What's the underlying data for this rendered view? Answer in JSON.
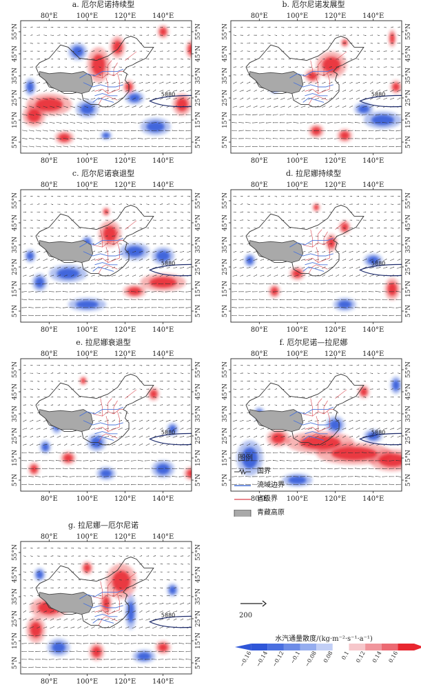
{
  "panels": [
    {
      "title": "a. 厄尔尼诺持续型",
      "contour_label": "5880"
    },
    {
      "title": "b. 厄尔尼诺发展型",
      "contour_label": "5880"
    },
    {
      "title": "c. 厄尔尼诺衰退型",
      "contour_label": "5880"
    },
    {
      "title": "d. 拉尼娜持续型",
      "contour_label": "5880"
    },
    {
      "title": "e. 拉尼娜衰退型",
      "contour_label": "5880"
    },
    {
      "title": "f. 厄尔尼诺—拉尼娜",
      "contour_label": "5880"
    },
    {
      "title": "g. 拉尼娜—厄尔尼诺",
      "contour_label": "5880"
    }
  ],
  "axes": {
    "lon_labels": [
      "80°E",
      "100°E",
      "120°E",
      "140°E"
    ],
    "lat_labels": [
      "55°N",
      "45°N",
      "35°N",
      "25°N",
      "15°N",
      "5°N"
    ]
  },
  "legend": {
    "title": "图例",
    "items": [
      "国界",
      "流域边界",
      "省级界",
      "青藏高原"
    ],
    "scale_value": "200",
    "colorbar_title": "水汽通量散度/(kg·m⁻²·s⁻¹·a⁻¹)",
    "colorbar_ticks": [
      "−0.16",
      "−0.14",
      "−0.12",
      "−0.1",
      "−0.08",
      "0.08",
      "0.1",
      "0.12",
      "0.14",
      "0.16"
    ]
  },
  "colors": {
    "positive": "#e8262f",
    "negative": "#2f56d8",
    "plateau": "#a9a9a9",
    "basin_boundary": "#4a73d9",
    "province_boundary": "#d9414a",
    "national_boundary": "#333333"
  }
}
